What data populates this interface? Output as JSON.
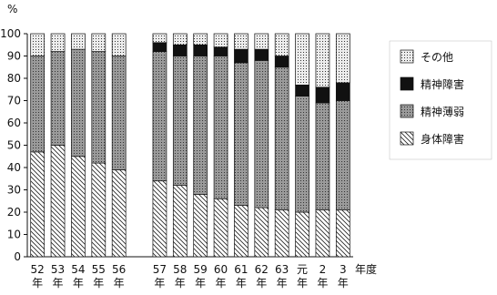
{
  "chart_data": {
    "type": "stacked-bar",
    "y_label": "%",
    "x_label": "年度",
    "categories": [
      "52年",
      "53年",
      "54年",
      "55年",
      "56年",
      null,
      "57年",
      "58年",
      "59年",
      "60年",
      "61年",
      "62年",
      "63年",
      "元年",
      "2年",
      "3年"
    ],
    "series": [
      {
        "name": "身体障害",
        "color": "#ffffff",
        "pattern": "hatch",
        "values": [
          47,
          50,
          45,
          42,
          39,
          null,
          34,
          32,
          28,
          26,
          23,
          22,
          21,
          20,
          21,
          21
        ]
      },
      {
        "name": "精神薄弱",
        "color": "#9a9a9a",
        "pattern": "dots",
        "values": [
          43,
          42,
          48,
          50,
          51,
          null,
          58,
          58,
          62,
          64,
          64,
          66,
          64,
          52,
          48,
          49
        ]
      },
      {
        "name": "精神障害",
        "color": "#111111",
        "pattern": "solid",
        "values": [
          0,
          0,
          0,
          0,
          0,
          null,
          4,
          5,
          5,
          4,
          6,
          5,
          5,
          5,
          7,
          8
        ]
      },
      {
        "name": "その他",
        "color": "#ececec",
        "pattern": "dots",
        "values": [
          10,
          8,
          7,
          8,
          10,
          null,
          4,
          5,
          5,
          6,
          7,
          7,
          10,
          23,
          24,
          22
        ]
      }
    ],
    "ylim": [
      0,
      100
    ],
    "yticks": [
      0,
      10,
      20,
      30,
      40,
      50,
      60,
      70,
      80,
      90,
      100
    ]
  }
}
